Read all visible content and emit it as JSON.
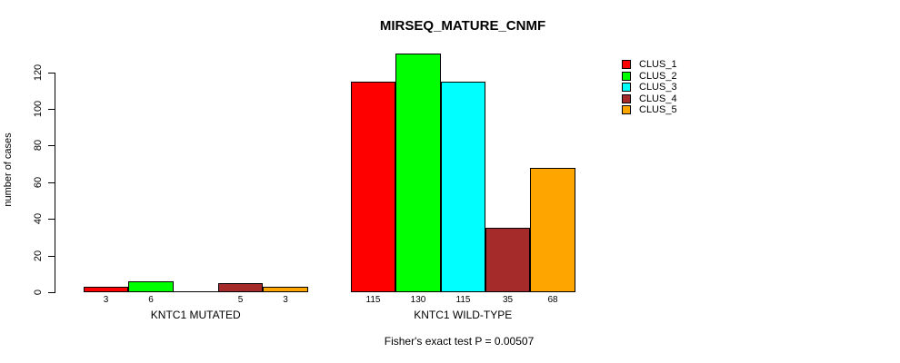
{
  "chart_data": {
    "type": "bar",
    "title": "MIRSEQ_MATURE_CNMF",
    "ylabel": "number of cases",
    "ylim": [
      0,
      130
    ],
    "yticks": [
      0,
      20,
      40,
      60,
      80,
      100,
      120
    ],
    "grid": false,
    "legend_position": "right",
    "categories": [
      "KNTC1 MUTATED",
      "KNTC1 WILD-TYPE"
    ],
    "series": [
      {
        "name": "CLUS_1",
        "color": "#ff0000",
        "values": [
          3,
          115
        ]
      },
      {
        "name": "CLUS_2",
        "color": "#00ff00",
        "values": [
          6,
          130
        ]
      },
      {
        "name": "CLUS_3",
        "color": "#00ffff",
        "values": [
          0,
          115
        ]
      },
      {
        "name": "CLUS_4",
        "color": "#a52a2a",
        "values": [
          5,
          35
        ]
      },
      {
        "name": "CLUS_5",
        "color": "#ffa500",
        "values": [
          3,
          68
        ]
      }
    ],
    "bar_value_labels": [
      [
        "3",
        "6",
        "",
        "5",
        "3"
      ],
      [
        "115",
        "130",
        "115",
        "35",
        "68"
      ]
    ],
    "footnote": "Fisher's exact test P = 0.00507"
  }
}
